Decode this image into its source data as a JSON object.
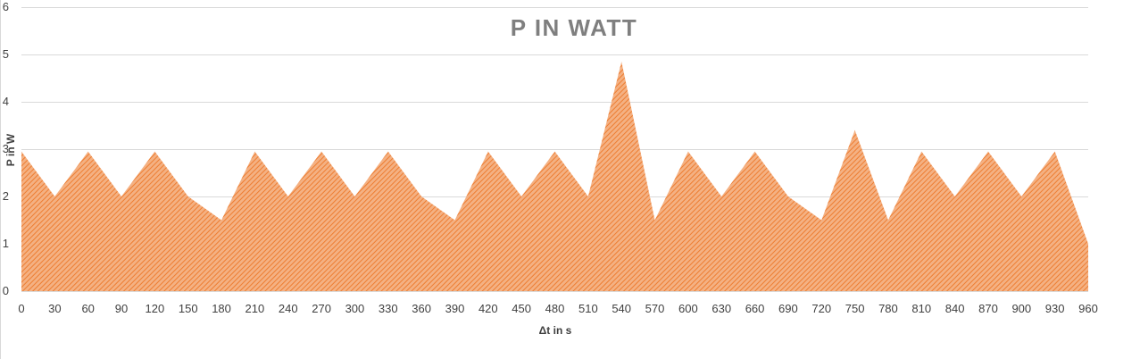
{
  "chart_data": {
    "type": "area",
    "title": "P IN WATT",
    "xlabel": "Δt in s",
    "ylabel": "P in W",
    "x": [
      0,
      30,
      60,
      90,
      120,
      150,
      180,
      210,
      240,
      270,
      300,
      330,
      360,
      390,
      420,
      450,
      480,
      510,
      540,
      570,
      600,
      630,
      660,
      690,
      720,
      750,
      780,
      810,
      840,
      870,
      900,
      930,
      960
    ],
    "series": [
      {
        "values": [
          2.95,
          2.0,
          2.95,
          2.0,
          2.95,
          2.0,
          1.5,
          2.95,
          2.0,
          2.95,
          2.0,
          2.95,
          2.0,
          1.5,
          2.95,
          2.0,
          2.95,
          2.0,
          4.85,
          1.5,
          2.95,
          2.0,
          2.95,
          2.0,
          1.5,
          3.4,
          1.5,
          2.95,
          2.0,
          2.95,
          2.0,
          2.95,
          1.0
        ],
        "color": "#ed7d31"
      }
    ],
    "ylim": [
      0,
      6
    ],
    "y_ticks": [
      0,
      1,
      2,
      3,
      4,
      5,
      6
    ],
    "grid": true,
    "fill_pattern": "diagonal-hatch"
  }
}
